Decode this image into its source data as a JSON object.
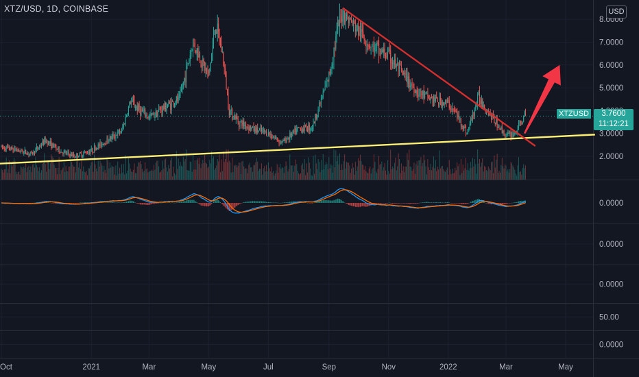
{
  "header": {
    "symbol_title": "XTZ/USD, 1D, COINBASE",
    "currency": "USD"
  },
  "last_price": {
    "ticker": "XTZUSD",
    "price": "3.7600",
    "countdown": "11:12:21"
  },
  "colors": {
    "background": "#131722",
    "grid": "#1c2030",
    "up_candle": "#26a69a",
    "down_candle": "#ef5350",
    "support_line": "#fff176",
    "resistance_line": "#d32f2f",
    "arrow": "#f23645",
    "macd_line": "#2196f3",
    "signal_line": "#ff6d00"
  },
  "chart_data": [
    {
      "type": "candlestick",
      "title": "XTZ/USD, 1D, COINBASE",
      "y_axis_ticks": [
        "2.0000",
        "3.0000",
        "4.0000",
        "5.0000",
        "6.0000",
        "7.0000",
        "8.0000"
      ],
      "x_axis_ticks": [
        "Oct",
        "2021",
        "Mar",
        "May",
        "Jul",
        "Sep",
        "Nov",
        "2022",
        "Mar",
        "May"
      ],
      "ylim": [
        1.0,
        8.5
      ],
      "grid": true,
      "x": [
        "2020-10-01",
        "2020-10-15",
        "2020-11-01",
        "2020-11-15",
        "2020-12-01",
        "2020-12-15",
        "2021-01-01",
        "2021-01-15",
        "2021-02-01",
        "2021-02-10",
        "2021-02-20",
        "2021-03-01",
        "2021-03-15",
        "2021-04-01",
        "2021-04-15",
        "2021-05-01",
        "2021-05-08",
        "2021-05-15",
        "2021-05-22",
        "2021-06-01",
        "2021-06-15",
        "2021-07-01",
        "2021-07-15",
        "2021-08-01",
        "2021-08-15",
        "2021-09-01",
        "2021-09-10",
        "2021-09-15",
        "2021-10-01",
        "2021-10-15",
        "2021-11-01",
        "2021-11-15",
        "2021-12-01",
        "2021-12-15",
        "2022-01-01",
        "2022-01-10",
        "2022-01-20",
        "2022-02-01",
        "2022-02-15",
        "2022-03-01",
        "2022-03-10",
        "2022-03-20"
      ],
      "close": [
        2.4,
        2.3,
        2.1,
        2.7,
        2.2,
        2.0,
        2.25,
        2.65,
        3.1,
        4.4,
        4.0,
        3.7,
        4.1,
        4.5,
        7.0,
        5.5,
        7.8,
        6.5,
        4.0,
        3.5,
        3.2,
        3.0,
        2.6,
        3.2,
        3.3,
        5.5,
        7.6,
        8.3,
        7.5,
        6.8,
        6.4,
        5.6,
        4.8,
        4.5,
        4.3,
        3.8,
        3.0,
        4.6,
        3.7,
        2.9,
        3.0,
        3.76
      ],
      "annotations": [
        {
          "type": "trendline",
          "label": "rising support",
          "from": [
            "2020-09-15",
            1.65
          ],
          "to": [
            "2022-05-31",
            2.95
          ]
        },
        {
          "type": "trendline",
          "label": "falling resistance",
          "from": [
            "2021-09-15",
            8.5
          ],
          "to": [
            "2022-03-31",
            2.45
          ]
        },
        {
          "type": "arrow",
          "direction": "up-right",
          "from": [
            "2022-03-20",
            3.0
          ],
          "to": [
            "2022-04-25",
            6.0
          ]
        }
      ],
      "last_price": 3.76
    },
    {
      "type": "bar",
      "title": "",
      "note": "volume",
      "y_axis_ticks": []
    },
    {
      "type": "line",
      "title": "",
      "note": "MACD",
      "y_axis_ticks": [
        "0.0000"
      ],
      "series": [
        {
          "name": "",
          "color": "#2196f3"
        },
        {
          "name": "",
          "color": "#ff6d00"
        }
      ]
    }
  ],
  "empty_panes": [
    {
      "value_label": "0.0000"
    },
    {
      "value_label": "0.0000"
    },
    {
      "value_label": "50.00"
    },
    {
      "value_label": "0.0000"
    }
  ]
}
